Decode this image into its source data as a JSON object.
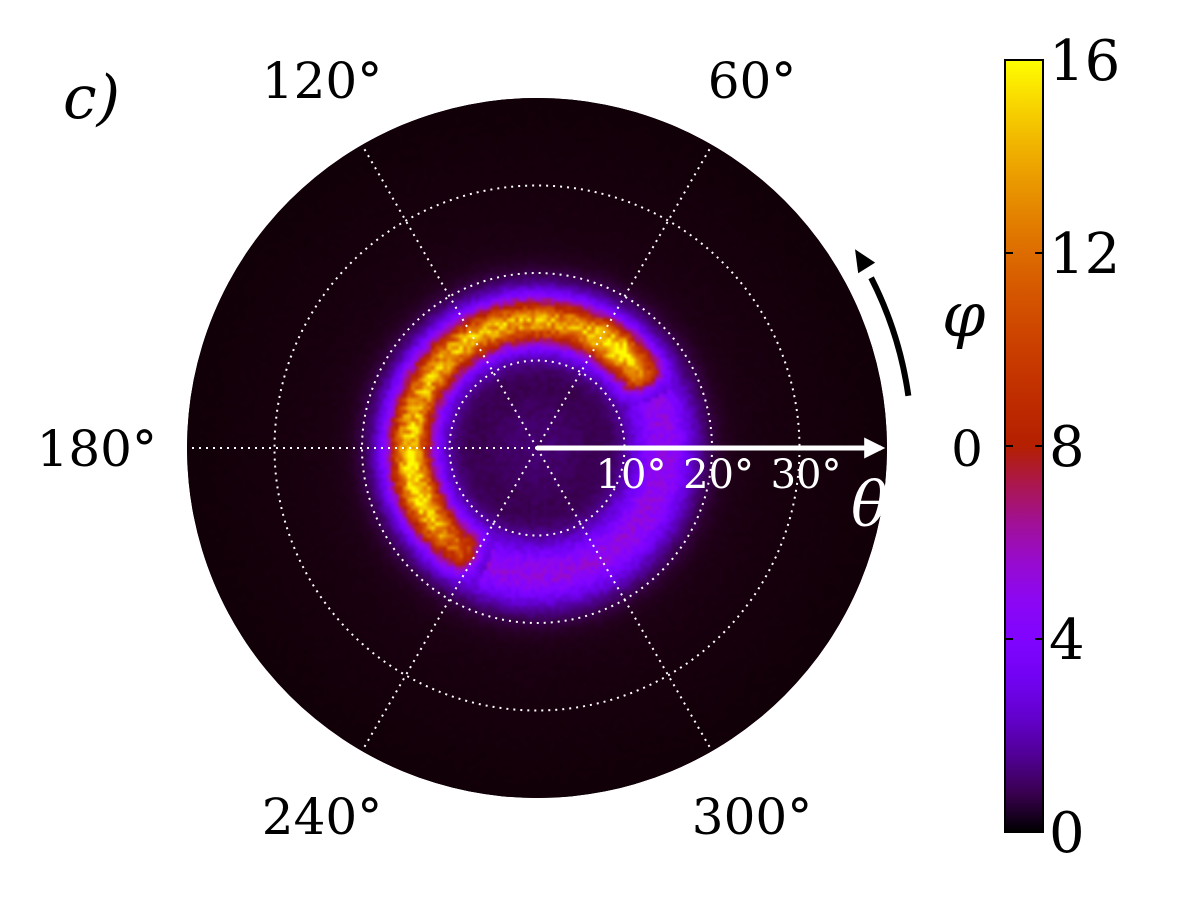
{
  "panel_label": "c)",
  "chart_data": {
    "type": "heatmap",
    "projection": "polar",
    "title": "",
    "radial_axis": {
      "symbol": "θ",
      "unit": "degrees",
      "range": [
        0,
        40
      ],
      "grid_rings": [
        10,
        20,
        30,
        40
      ],
      "tick_labels": [
        "10°",
        "20°",
        "30°"
      ]
    },
    "angular_axis": {
      "symbol": "φ",
      "unit": "degrees",
      "gridlines": [
        0,
        60,
        120,
        180,
        240,
        300
      ],
      "tick_labels": [
        {
          "angle": 0,
          "text": "0"
        },
        {
          "angle": 60,
          "text": "60°"
        },
        {
          "angle": 120,
          "text": "120°"
        },
        {
          "angle": 180,
          "text": "180°"
        },
        {
          "angle": 240,
          "text": "240°"
        },
        {
          "angle": 300,
          "text": "300°"
        }
      ]
    },
    "colorbar": {
      "colormap": "gnuplot",
      "range": [
        0,
        16
      ],
      "ticks": [
        0,
        4,
        8,
        12,
        16
      ]
    },
    "distribution": {
      "ring": {
        "peak_theta": 14.5,
        "width_theta": 2.6,
        "intensity": 4.8
      },
      "arc": {
        "peak_theta": 14.5,
        "width_theta": 1.6,
        "phi_start": 35,
        "phi_end": 235,
        "intensity_by_phi": [
          {
            "phi": 35,
            "value": 10.5
          },
          {
            "phi": 50,
            "value": 14.5
          },
          {
            "phi": 75,
            "value": 11.0
          },
          {
            "phi": 100,
            "value": 11.5
          },
          {
            "phi": 125,
            "value": 12.0
          },
          {
            "phi": 150,
            "value": 11.5
          },
          {
            "phi": 180,
            "value": 12.5
          },
          {
            "phi": 200,
            "value": 14.0
          },
          {
            "phi": 220,
            "value": 11.0
          },
          {
            "phi": 235,
            "value": 8.0
          }
        ]
      },
      "center_value": 0.8,
      "background_value": 0.3
    },
    "grid": true,
    "colors": {
      "background": "#000000",
      "grid": "#ffffff",
      "arrows": "#ffffff",
      "phi_arrow": "#000000"
    }
  }
}
